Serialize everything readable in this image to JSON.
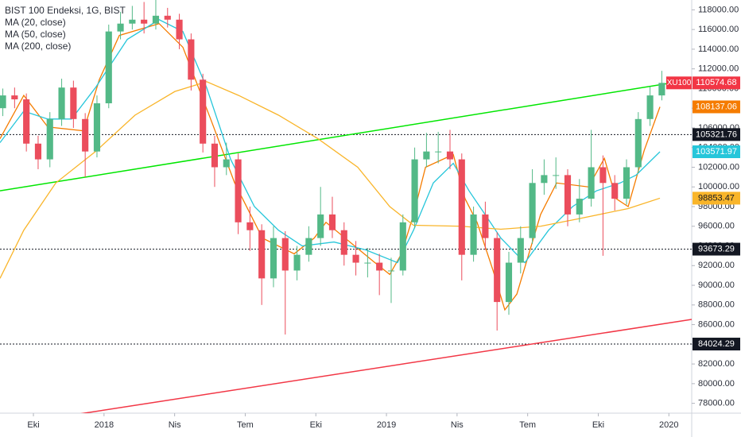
{
  "chart_data": {
    "type": "candlestick",
    "title": "BIST 100 Endeksi, 1G, BIST",
    "symbol": "XU100",
    "up_color": "#53b987",
    "down_color": "#eb4d5c",
    "last_color": "#f23645",
    "x": [
      -1.3,
      -0.8,
      -0.3,
      0.2,
      0.7,
      1.2,
      1.7,
      2.2,
      2.7,
      3.2,
      3.7,
      4.2,
      4.7,
      5.2,
      5.7,
      6.2,
      6.7,
      7.2,
      7.7,
      8.2,
      8.7,
      9.2,
      9.7,
      10.2,
      10.7,
      11.2,
      11.7,
      12.2,
      12.7,
      13.2,
      13.7,
      14.2,
      14.7,
      15.2,
      15.7,
      16.2,
      16.7,
      17.2,
      17.7,
      18.2,
      18.7,
      19.2,
      19.7,
      20.2,
      20.7,
      21.2,
      21.7,
      22.2,
      22.7,
      23.2,
      23.7,
      24.2,
      24.7,
      25.2,
      25.7,
      26.2,
      26.7
    ],
    "open": [
      108000,
      109300,
      108900,
      104400,
      102800,
      106900,
      110100,
      106900,
      103600,
      108500,
      115800,
      116600,
      117000,
      116600,
      117400,
      117000,
      115000,
      110900,
      104400,
      102000,
      102800,
      96400,
      95600,
      90700,
      94800,
      91500,
      93100,
      94800,
      97200,
      95600,
      93100,
      92300,
      92300,
      91500,
      91500,
      96400,
      102800,
      103600,
      103600,
      102800,
      93100,
      97200,
      94800,
      88300,
      92300,
      94800,
      100400,
      101200,
      101200,
      97200,
      98800,
      102000,
      100400,
      98800,
      102000,
      106900,
      109300
    ],
    "high": [
      110000,
      110100,
      109500,
      105200,
      107600,
      111000,
      110800,
      107500,
      109300,
      116500,
      117800,
      118400,
      118800,
      119000,
      118200,
      117600,
      115600,
      111500,
      105200,
      104500,
      103400,
      98000,
      96200,
      96000,
      95500,
      94000,
      96000,
      100000,
      99000,
      96400,
      94500,
      93800,
      93200,
      92800,
      97200,
      104000,
      105500,
      105600,
      105800,
      103400,
      98000,
      98500,
      95400,
      93400,
      96000,
      101800,
      102800,
      103000,
      101800,
      100800,
      105800,
      103200,
      101200,
      102800,
      107600,
      110200,
      111800
    ],
    "low": [
      107200,
      108000,
      103600,
      101800,
      102000,
      106200,
      106000,
      101000,
      103000,
      108000,
      115000,
      116000,
      115600,
      116000,
      116200,
      114000,
      109800,
      103500,
      100000,
      101200,
      95200,
      93500,
      88000,
      89800,
      85000,
      90500,
      92400,
      94000,
      94800,
      92000,
      91000,
      90800,
      89000,
      88200,
      91000,
      95800,
      102000,
      102400,
      101800,
      90500,
      92400,
      93600,
      85400,
      87000,
      91200,
      94200,
      99200,
      99800,
      96000,
      96400,
      98000,
      93000,
      97600,
      98200,
      101400,
      106200,
      108800
    ],
    "close": [
      109300,
      108900,
      104400,
      102800,
      106900,
      110100,
      106900,
      103600,
      108500,
      115800,
      116600,
      117000,
      116600,
      117400,
      117000,
      115000,
      110900,
      104400,
      102000,
      102800,
      96400,
      95600,
      90700,
      94800,
      91500,
      93100,
      94800,
      97200,
      95600,
      93100,
      92300,
      92300,
      91500,
      91500,
      96400,
      102800,
      103600,
      103600,
      102800,
      93100,
      97200,
      94800,
      88300,
      92300,
      94800,
      100400,
      101200,
      101200,
      97200,
      98800,
      102000,
      100400,
      98800,
      102000,
      106900,
      109300,
      110574.68
    ],
    "last_price": 110574.68,
    "indicators": [
      {
        "name": "MA (20, close)",
        "color": "#f57c00",
        "last_value": 108137.06,
        "x": [
          -1.42,
          -0.41,
          0.61,
          2.13,
          2.8,
          3.65,
          5.34,
          6.35,
          7.53,
          8.55,
          9.73,
          11.08,
          11.93,
          12.43,
          14.46,
          15.14,
          15.64,
          16.15,
          16.66,
          17.84,
          18.34,
          18.85,
          19.53,
          20.03,
          20.54,
          21.55,
          22.23,
          23.58,
          24.26,
          24.76,
          25.27,
          25.95,
          26.62
        ],
        "values": [
          104900,
          109300,
          106100,
          105700,
          110900,
          115400,
          116600,
          114200,
          106900,
          100400,
          94800,
          93200,
          94800,
          96400,
          92400,
          91100,
          93200,
          97200,
          102000,
          103300,
          98800,
          96400,
          91500,
          87500,
          89100,
          97200,
          100400,
          100000,
          102900,
          98800,
          98000,
          103700,
          108137.06
        ]
      },
      {
        "name": "MA (50, close)",
        "color": "#26c6da",
        "last_value": 103571.97,
        "x": [
          -1.42,
          -0.41,
          0.61,
          1.62,
          2.64,
          3.99,
          5.34,
          6.35,
          7.36,
          8.38,
          9.39,
          10.41,
          11.42,
          12.77,
          14.12,
          15.47,
          16.15,
          16.99,
          17.84,
          18.51,
          19.19,
          19.86,
          20.88,
          21.89,
          22.91,
          23.92,
          24.93,
          25.61,
          26.62
        ],
        "values": [
          104500,
          107700,
          106900,
          106900,
          110100,
          115000,
          117000,
          115800,
          110100,
          102800,
          98000,
          95600,
          94000,
          94400,
          93600,
          92300,
          95600,
          100400,
          102400,
          99600,
          97200,
          94800,
          92300,
          95600,
          98000,
          99600,
          100400,
          101200,
          103571.97
        ]
      },
      {
        "name": "MA (200, close)",
        "color": "#f9b52a",
        "last_value": 98853.47,
        "x": [
          -1.42,
          -0.41,
          0.95,
          2.64,
          4.32,
          6.01,
          7.36,
          8.72,
          10.41,
          12.09,
          13.78,
          15.14,
          16.15,
          18.18,
          19.86,
          21.55,
          23.24,
          25.27,
          26.62
        ],
        "values": [
          90700,
          95600,
          100400,
          103600,
          107300,
          109700,
          110700,
          109300,
          107300,
          104900,
          102000,
          98000,
          96100,
          96000,
          95700,
          96000,
          96800,
          97800,
          98853.47
        ]
      }
    ],
    "levels": [
      105321.76,
      93673.29,
      84024.29
    ],
    "trendlines": [
      {
        "color": "#00e600",
        "x": [
          -1.42,
          27.97
        ],
        "values": [
          99600,
          110900
        ]
      },
      {
        "color": "#f23645",
        "x": [
          1.62,
          27.97
        ],
        "values": [
          76800,
          86530
        ]
      }
    ],
    "xlim": [
      -1.42,
      27.97
    ],
    "xticks": [
      {
        "value": 0,
        "label": "Eki"
      },
      {
        "value": 3,
        "label": "2018"
      },
      {
        "value": 6,
        "label": "Nis"
      },
      {
        "value": 9,
        "label": "Tem"
      },
      {
        "value": 12,
        "label": "Eki"
      },
      {
        "value": 15,
        "label": "2019"
      },
      {
        "value": 18,
        "label": "Nis"
      },
      {
        "value": 21,
        "label": "Tem"
      },
      {
        "value": 24,
        "label": "Eki"
      },
      {
        "value": 27,
        "label": "2020"
      }
    ],
    "ylim": [
      77000,
      119000
    ],
    "yticks": [
      {
        "value": 78000,
        "label": "78000.00"
      },
      {
        "value": 80000,
        "label": "80000.00"
      },
      {
        "value": 82000,
        "label": "82000.00"
      },
      {
        "value": 84000,
        "label": "84000.00"
      },
      {
        "value": 86000,
        "label": "86000.00"
      },
      {
        "value": 88000,
        "label": "88000.00"
      },
      {
        "value": 90000,
        "label": "90000.00"
      },
      {
        "value": 92000,
        "label": "92000.00"
      },
      {
        "value": 94000,
        "label": "94000.00"
      },
      {
        "value": 96000,
        "label": "96000.00"
      },
      {
        "value": 98000,
        "label": "98000.00"
      },
      {
        "value": 100000,
        "label": "100000.00"
      },
      {
        "value": 102000,
        "label": "102000.00"
      },
      {
        "value": 104000,
        "label": "104000.00"
      },
      {
        "value": 106000,
        "label": "106000.00"
      },
      {
        "value": 108000,
        "label": "108000.00"
      },
      {
        "value": 110000,
        "label": "110000.00"
      },
      {
        "value": 112000,
        "label": "112000.00"
      },
      {
        "value": 114000,
        "label": "114000.00"
      },
      {
        "value": 116000,
        "label": "116000.00"
      },
      {
        "value": 118000,
        "label": "118000.00"
      }
    ]
  }
}
